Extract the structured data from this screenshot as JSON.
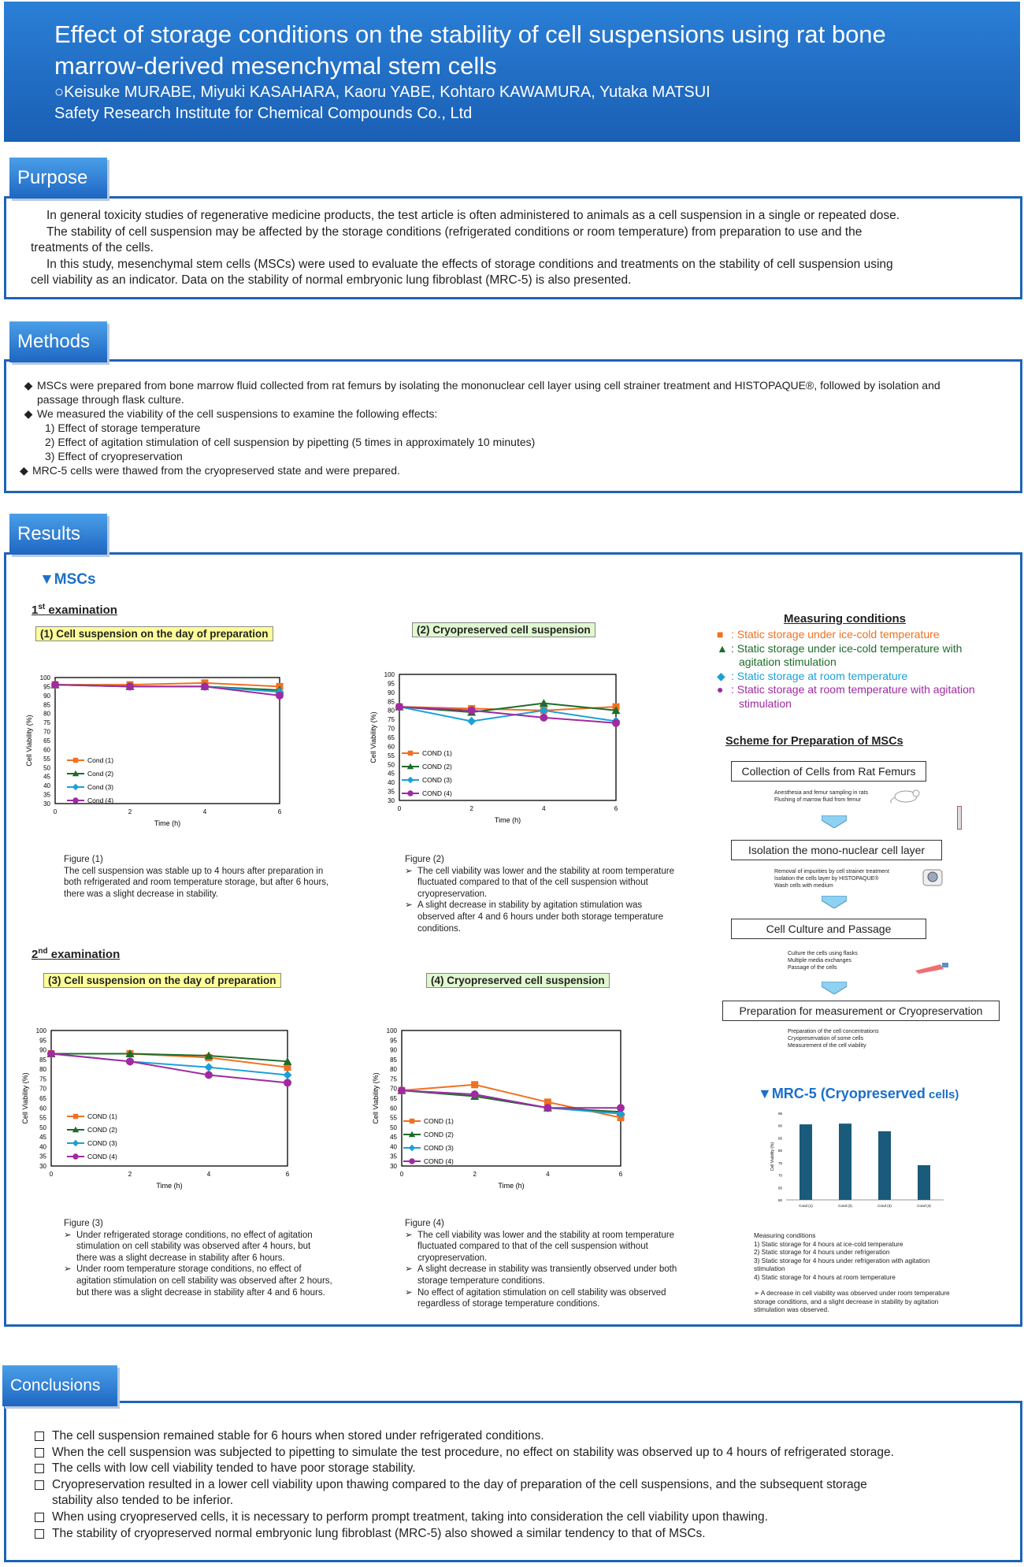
{
  "header": {
    "title_line1": "Effect of storage conditions on the stability of cell suspensions using rat bone",
    "title_line2": "marrow-derived mesenchymal stem cells",
    "authors": "○Keisuke MURABE, Miyuki KASAHARA, Kaoru YABE, Kohtaro KAWAMURA, Yutaka MATSUI",
    "institution": "Safety Research Institute for Chemical Compounds Co., Ltd"
  },
  "purpose": {
    "heading": "Purpose",
    "lines": [
      "In general toxicity studies of regenerative medicine products, the test article is often administered to animals as a cell suspension in a single or repeated dose.",
      "The stability of cell suspension may be affected by the storage conditions (refrigerated conditions or room temperature) from preparation to use and the",
      "treatments of the cells.",
      "In this study, mesenchymal stem cells (MSCs) were used to evaluate the effects of storage conditions and treatments on the stability of cell suspension using",
      "cell viability as an indicator. Data on the stability of normal embryonic lung fibroblast (MRC-5) is also presented."
    ]
  },
  "methods": {
    "heading": "Methods",
    "b1_line1": "MSCs were prepared from bone marrow fluid collected from rat femurs by isolating the mononuclear cell layer using cell strainer treatment and HISTOPAQUE®, followed by isolation and",
    "b1_line2": "passage through flask culture.",
    "b2": "We measured the viability of the cell suspensions to examine the following effects:",
    "sub": [
      "1)   Effect of storage temperature",
      "2)   Effect of agitation stimulation of cell suspension by pipetting (5 times in approximately 10 minutes)",
      "3)   Effect of cryopreservation"
    ],
    "b3": "MRC-5 cells were thawed from the cryopreserved state and were prepared.",
    "bullet_glyph": "◆"
  },
  "results": {
    "heading": "Results",
    "mscs": "▼MSCs",
    "exam1_a": "1",
    "exam1_sup": "st",
    "exam1_b": " examination",
    "exam2_a": "2",
    "exam2_sup": "nd",
    "exam2_b": "  examination",
    "measuring": {
      "title": "Measuring conditions",
      "items": [
        {
          "marker": "■",
          "color": "#f07020",
          "line1": ": Static storage under ice-cold temperature",
          "line2": ""
        },
        {
          "marker": "▲",
          "color": "#1e6b2a",
          "line1": ": Static storage under ice-cold temperature with",
          "line2": "agitation stimulation"
        },
        {
          "marker": "◆",
          "color": "#1ba0d8",
          "line1": ": Static storage at room temperature",
          "line2": ""
        },
        {
          "marker": "●",
          "color": "#a02aa0",
          "line1": ": Static storage at room temperature with agitation",
          "line2": "stimulation"
        }
      ]
    },
    "scheme": {
      "title": "Scheme for Preparation of MSCs",
      "steps": [
        "Collection of Cells from Rat Femurs",
        "Isolation the mono-nuclear cell layer",
        "Cell Culture and Passage",
        "Preparation for measurement or  Cryopreservation"
      ],
      "notes": [
        [
          "Anesthesia and femur sampling in rats",
          "Flushing of marrow fluid from femur"
        ],
        [
          "Removal of impurities by cell strainer treatment",
          "Isolation the cells layer by HISTOPAQUE®",
          "Wash cells with medium"
        ],
        [
          "Culture the cells using flasks",
          "Multiple media exchanges",
          "Passage of the cells"
        ],
        [
          "Preparation of the cell concentrations",
          "Cryopreservation of some cells",
          "Measurement of the cell viability"
        ]
      ]
    },
    "mrc5": {
      "title_a": "▼MRC-5 (Cryopreserved",
      "title_b": " cells)",
      "cond_title": "Measuring conditions",
      "conds": [
        "1)   Static storage for 4 hours at ice-cold temperature",
        "2)   Static storage for 4 hours under refrigeration",
        "3)   Static storage for 4 hours under refrigeration with agitation",
        "      stimulation",
        "4)   Static storage for 4 hours at room temperature"
      ],
      "note": [
        "➢   A decrease in cell viability was observed under room temperature",
        "      storage conditions, and a slight decrease in stability by agitation",
        "      stimulation was observed."
      ]
    },
    "captions": {
      "fig1": {
        "title": "Figure (1)",
        "lines": [
          "The cell suspension was stable up to 4 hours after preparation in",
          "both refrigerated and room temperature storage, but after 6 hours,",
          "there was a slight decrease in stability."
        ]
      },
      "fig2": {
        "title": "Figure (2)",
        "items": [
          [
            "The cell viability was lower and the stability at room temperature",
            "fluctuated compared to that of the cell suspension without",
            "cryopreservation."
          ],
          [
            "A slight decrease in stability by agitation stimulation was",
            "observed after 4 and 6 hours under both storage temperature",
            "conditions."
          ]
        ]
      },
      "fig3": {
        "title": "Figure (3)",
        "items": [
          [
            "Under refrigerated storage conditions, no effect of agitation",
            "stimulation on cell stability was observed after 4 hours, but",
            "there was a slight decrease in stability after 6 hours."
          ],
          [
            "Under room temperature storage conditions, no effect of",
            "agitation stimulation on cell stability was observed after 2 hours,",
            "but there was a slight decrease in stability after 4 and 6 hours."
          ]
        ]
      },
      "fig4": {
        "title": "Figure (4)",
        "items": [
          [
            "The cell viability was lower and the stability at room temperature",
            "fluctuated compared to that of the cell suspension without",
            "cryopreservation."
          ],
          [
            "A slight decrease in stability was transiently observed under both",
            "storage temperature conditions."
          ],
          [
            "No effect of agitation stimulation on cell stability was observed",
            "regardless of storage temperature conditions."
          ]
        ]
      }
    }
  },
  "conclusions": {
    "heading": "Conclusions",
    "lines": [
      "The cell suspension remained stable for 6 hours when stored under refrigerated conditions.",
      "When the cell suspension was subjected to pipetting to simulate the test procedure, no effect on stability was observed up to 4 hours of refrigerated storage.",
      "The cells with low cell viability tended to have poor storage stability.",
      "Cryopreservation resulted in a lower cell viability upon thawing compared to the day of preparation of the cell suspensions, and the subsequent storage",
      "stability also tended to be inferior.",
      "When using cryopreserved cells, it is necessary to perform prompt treatment, taking into consideration the cell viability upon thawing.",
      "The stability of cryopreserved normal embryonic lung fibroblast (MRC-5) also showed a similar tendency to that of MSCs."
    ],
    "bullet_rows": [
      0,
      1,
      2,
      3,
      5,
      6
    ]
  },
  "chart_data": [
    {
      "id": "fig1",
      "type": "line",
      "title": "(1) Cell suspension on the day of preparation",
      "title_bg": "#ffff99",
      "xlabel": "Time (h)",
      "ylabel": "Cell Viability (%)",
      "x": [
        0,
        2,
        4,
        6
      ],
      "ylim": [
        30,
        100
      ],
      "yticks": [
        30,
        35,
        40,
        45,
        50,
        55,
        60,
        65,
        70,
        75,
        80,
        85,
        90,
        95,
        100
      ],
      "legend_pos": "bottom-left",
      "series": [
        {
          "name": "Cond (1)",
          "color": "#f07020",
          "marker": "square",
          "values": [
            96,
            96,
            97,
            95
          ]
        },
        {
          "name": "Cond (2)",
          "color": "#1e6b2a",
          "marker": "triangle",
          "values": [
            96,
            95,
            95,
            93
          ]
        },
        {
          "name": "Cond (3)",
          "color": "#1ba0d8",
          "marker": "diamond",
          "values": [
            96,
            95,
            95,
            92
          ]
        },
        {
          "name": "Cond (4)",
          "color": "#a02aa0",
          "marker": "circle",
          "values": [
            96,
            95,
            95,
            90
          ]
        }
      ]
    },
    {
      "id": "fig2",
      "type": "line",
      "title": "(2) Cryopreserved cell suspension",
      "title_bg": "#e0f7d0",
      "xlabel": "Time (h)",
      "ylabel": "Cell Viability (%)",
      "x": [
        0,
        2,
        4,
        6
      ],
      "ylim": [
        30,
        100
      ],
      "yticks": [
        30,
        35,
        40,
        45,
        50,
        55,
        60,
        65,
        70,
        75,
        80,
        85,
        90,
        95,
        100
      ],
      "legend_pos": "bottom-left",
      "series": [
        {
          "name": "COND (1)",
          "color": "#f07020",
          "marker": "square",
          "values": [
            82,
            81,
            80,
            82
          ]
        },
        {
          "name": "COND (2)",
          "color": "#1e6b2a",
          "marker": "triangle",
          "values": [
            82,
            79,
            84,
            80
          ]
        },
        {
          "name": "COND (3)",
          "color": "#1ba0d8",
          "marker": "diamond",
          "values": [
            82,
            74,
            80,
            74
          ]
        },
        {
          "name": "COND (4)",
          "color": "#a02aa0",
          "marker": "circle",
          "values": [
            82,
            80,
            76,
            73
          ]
        }
      ]
    },
    {
      "id": "fig3",
      "type": "line",
      "title": "(3) Cell suspension on the day of preparation",
      "title_bg": "#ffff99",
      "xlabel": "Time (h)",
      "ylabel": "Cell Viability (%)",
      "x": [
        0,
        2,
        4,
        6
      ],
      "ylim": [
        30,
        100
      ],
      "yticks": [
        30,
        35,
        40,
        45,
        50,
        55,
        60,
        65,
        70,
        75,
        80,
        85,
        90,
        95,
        100
      ],
      "legend_pos": "bottom-left",
      "series": [
        {
          "name": "COND (1)",
          "color": "#f07020",
          "marker": "square",
          "values": [
            88,
            88,
            86,
            81
          ]
        },
        {
          "name": "COND (2)",
          "color": "#1e6b2a",
          "marker": "triangle",
          "values": [
            88,
            88,
            87,
            84
          ]
        },
        {
          "name": "COND (3)",
          "color": "#1ba0d8",
          "marker": "diamond",
          "values": [
            88,
            84,
            81,
            77
          ]
        },
        {
          "name": "COND (4)",
          "color": "#a02aa0",
          "marker": "circle",
          "values": [
            88,
            84,
            77,
            73
          ]
        }
      ]
    },
    {
      "id": "fig4",
      "type": "line",
      "title": "(4) Cryopreserved cell suspension",
      "title_bg": "#e0f7d0",
      "xlabel": "Time (h)",
      "ylabel": "Cell Viability (%)",
      "x": [
        0,
        2,
        4,
        6
      ],
      "ylim": [
        30,
        100
      ],
      "yticks": [
        30,
        35,
        40,
        45,
        50,
        55,
        60,
        65,
        70,
        75,
        80,
        85,
        90,
        95,
        100
      ],
      "legend_pos": "bottom-left",
      "series": [
        {
          "name": "COND (1)",
          "color": "#f07020",
          "marker": "square",
          "values": [
            69,
            72,
            63,
            55
          ]
        },
        {
          "name": "COND (2)",
          "color": "#1e6b2a",
          "marker": "triangle",
          "values": [
            69,
            66,
            60,
            58
          ]
        },
        {
          "name": "COND (3)",
          "color": "#1ba0d8",
          "marker": "diamond",
          "values": [
            69,
            67,
            60,
            57
          ]
        },
        {
          "name": "COND (4)",
          "color": "#a02aa0",
          "marker": "circle",
          "values": [
            69,
            67,
            60,
            60
          ]
        }
      ]
    },
    {
      "id": "mrc5",
      "type": "bar",
      "ylabel": "Cell Viability (%)",
      "categories": [
        "Cond (1)",
        "Cond (2)",
        "Cond (3)",
        "Cond (4)"
      ],
      "values": [
        90.5,
        90.8,
        87.7,
        74.0
      ],
      "ylim": [
        60,
        95
      ],
      "yticks": [
        60,
        65,
        70,
        75,
        80,
        85,
        90,
        95
      ],
      "color": "#1a5a7a"
    }
  ]
}
